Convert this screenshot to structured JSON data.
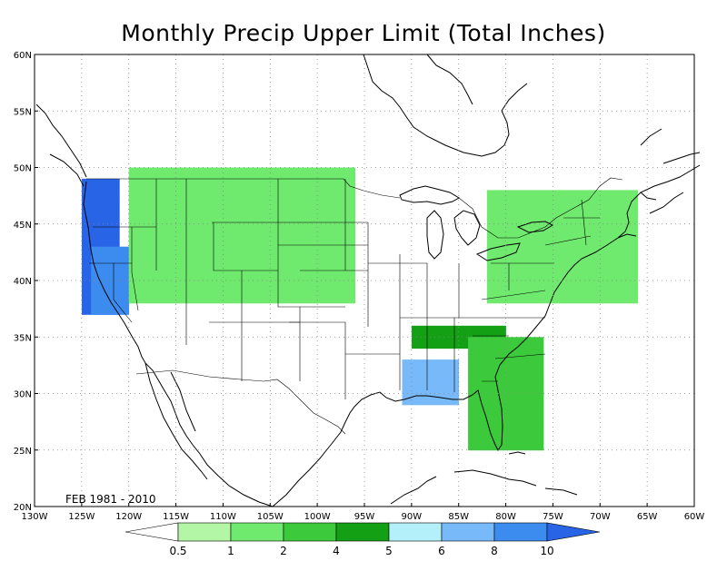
{
  "title": "Monthly Precip Upper Limit (Total Inches)",
  "period_label": "FEB 1981 - 2010",
  "map": {
    "lon_range": [
      -130,
      -60
    ],
    "lat_range": [
      20,
      60
    ],
    "lat_labels": [
      "20N",
      "25N",
      "30N",
      "35N",
      "40N",
      "45N",
      "50N",
      "55N",
      "60N"
    ],
    "lon_labels": [
      "130W",
      "125W",
      "120W",
      "115W",
      "110W",
      "105W",
      "100W",
      "95W",
      "90W",
      "85W",
      "80W",
      "75W",
      "70W",
      "65W",
      "60W"
    ],
    "grid": "dotted",
    "grid_cell_degrees": 2
  },
  "colorbar": {
    "levels": [
      "0.5",
      "1",
      "2",
      "4",
      "5",
      "6",
      "8",
      "10"
    ],
    "colors": [
      "#ffffff",
      "#b3f7a6",
      "#6fea6f",
      "#3cca3c",
      "#14a014",
      "#b4f0fa",
      "#78b9fa",
      "#3c8cf0",
      "#2864e6"
    ]
  },
  "chart_data": {
    "type": "heatmap",
    "title": "Monthly Precip Upper Limit (Total Inches)",
    "period": "FEB 1981 - 2010",
    "units": "Total Inches",
    "cell_size_degrees": 2,
    "category_bounds": [
      "<0.5",
      "0.5-1",
      "1-2",
      "2-4",
      "4-5",
      "5-6",
      "6-8",
      "8-10",
      ">10"
    ],
    "regions": [
      {
        "name_hint": "Pacific NW coast",
        "lon": [
          -125,
          -122
        ],
        "lat": [
          37,
          49
        ],
        "class": 8
      },
      {
        "name_hint": "Northern California coast",
        "lon": [
          -124,
          -121
        ],
        "lat": [
          37,
          42
        ],
        "class": 7
      },
      {
        "name_hint": "Northern Rockies / Great Plains",
        "lon": [
          -120,
          -96
        ],
        "lat": [
          38,
          49
        ],
        "class": 2
      },
      {
        "name_hint": "Southern Gulf states (LA/MS)",
        "lon": [
          -91,
          -86
        ],
        "lat": [
          29,
          33
        ],
        "class": 6
      },
      {
        "name_hint": "Tennessee Valley",
        "lon": [
          -90,
          -81
        ],
        "lat": [
          34,
          36
        ],
        "class": 4
      },
      {
        "name_hint": "Southeast coast & Florida",
        "lon": [
          -84,
          -77
        ],
        "lat": [
          25,
          35
        ],
        "class": 3
      },
      {
        "name_hint": "Northeast",
        "lon": [
          -82,
          -67
        ],
        "lat": [
          38,
          47
        ],
        "class": 2
      }
    ]
  }
}
